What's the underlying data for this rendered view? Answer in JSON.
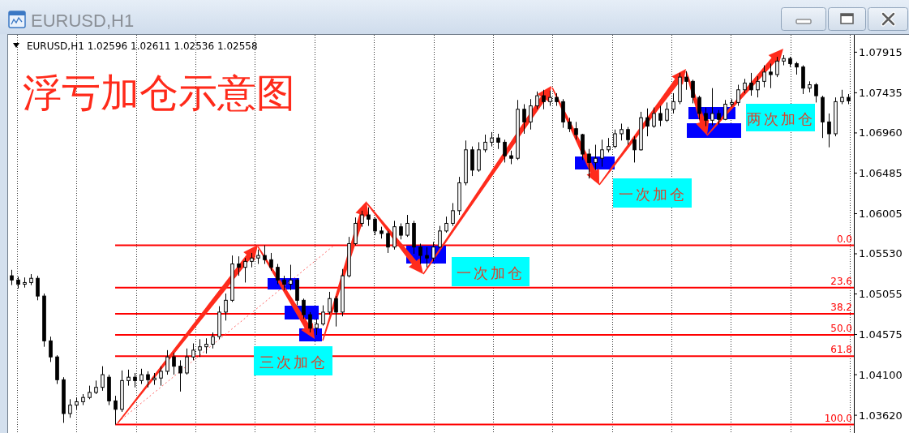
{
  "chart_data": {
    "type": "candlestick",
    "title": "浮亏加仓示意图",
    "subtitle": "EURUSD,H1 1.02596 1.02611 1.02536 1.02558",
    "annotations": [
      "EURUSD,H1",
      "三次加仓",
      "一次加仓",
      "一次加仓",
      "两次加仓",
      {
        "text": "0.0",
        "y": 1.0563
      },
      {
        "text": "23.6",
        "y": 1.0513
      },
      {
        "text": "38.2",
        "y": 1.0482
      },
      {
        "text": "50.0",
        "y": 1.0457
      },
      {
        "text": "61.8",
        "y": 1.0432
      },
      {
        "text": "100.0",
        "y": 1.0351
      }
    ],
    "tick_labels": "y",
    "categories": [
      null,
      null,
      null,
      null,
      null,
      null,
      null,
      null,
      null,
      null,
      null,
      null,
      null,
      null,
      null,
      null,
      null,
      null,
      null,
      null,
      null,
      null,
      null,
      null,
      null,
      null,
      null,
      null,
      null,
      null,
      null,
      null,
      null,
      null,
      null,
      null,
      null,
      null,
      null,
      null,
      null,
      null,
      null,
      null,
      null,
      null,
      null,
      null,
      null,
      null,
      null,
      null,
      null,
      null,
      null,
      null,
      null,
      null,
      null,
      null,
      null,
      null,
      null,
      null,
      null,
      null,
      null,
      null,
      null,
      null,
      null,
      null,
      null,
      null,
      null,
      null,
      null,
      null,
      null,
      null,
      null,
      null,
      null,
      null,
      null,
      null,
      null,
      null,
      null,
      null,
      null,
      null,
      null,
      null,
      null,
      null,
      null,
      null,
      null,
      null,
      null,
      null,
      null,
      null,
      null,
      null,
      null,
      null,
      null,
      null,
      null,
      null,
      null,
      null,
      null,
      null,
      null,
      null,
      null,
      null,
      null,
      null,
      null,
      null,
      null,
      null,
      null,
      null,
      null,
      null
    ],
    "ohlc": [
      [
        1.0527,
        1.0534,
        1.0516,
        1.0522
      ],
      [
        1.0522,
        1.0526,
        1.0512,
        1.0517
      ],
      [
        1.0517,
        1.0525,
        1.0513,
        1.0519
      ],
      [
        1.0519,
        1.0529,
        1.0516,
        1.0524
      ],
      [
        1.0524,
        1.0527,
        1.0498,
        1.0503
      ],
      [
        1.0503,
        1.0506,
        1.0443,
        1.045
      ],
      [
        1.045,
        1.0455,
        1.0425,
        1.0431
      ],
      [
        1.0431,
        1.0433,
        1.0399,
        1.0404
      ],
      [
        1.0404,
        1.0407,
        1.0353,
        1.0364
      ],
      [
        1.0364,
        1.0381,
        1.0359,
        1.0374
      ],
      [
        1.0374,
        1.0383,
        1.0369,
        1.0378
      ],
      [
        1.0378,
        1.0387,
        1.0374,
        1.0383
      ],
      [
        1.0383,
        1.0397,
        1.0381,
        1.0389
      ],
      [
        1.0389,
        1.0403,
        1.0387,
        1.0395
      ],
      [
        1.0395,
        1.042,
        1.0391,
        1.041
      ],
      [
        1.0407,
        1.041,
        1.0374,
        1.0379
      ],
      [
        1.0379,
        1.0385,
        1.0351,
        1.0369
      ],
      [
        1.0369,
        1.0415,
        1.0366,
        1.0403
      ],
      [
        1.0403,
        1.0416,
        1.0397,
        1.0407
      ],
      [
        1.0407,
        1.0412,
        1.0395,
        1.0403
      ],
      [
        1.0403,
        1.0417,
        1.0399,
        1.041
      ],
      [
        1.041,
        1.0414,
        1.0395,
        1.0404
      ],
      [
        1.0404,
        1.0412,
        1.0398,
        1.0406
      ],
      [
        1.0406,
        1.042,
        1.0397,
        1.0414
      ],
      [
        1.0414,
        1.0439,
        1.041,
        1.0431
      ],
      [
        1.0431,
        1.0436,
        1.041,
        1.042
      ],
      [
        1.042,
        1.0427,
        1.039,
        1.0412
      ],
      [
        1.0412,
        1.0441,
        1.041,
        1.0431
      ],
      [
        1.0431,
        1.0447,
        1.0427,
        1.0439
      ],
      [
        1.0439,
        1.0452,
        1.0431,
        1.0443
      ],
      [
        1.0443,
        1.0453,
        1.0435,
        1.0446
      ],
      [
        1.0446,
        1.046,
        1.0441,
        1.0455
      ],
      [
        1.0455,
        1.0491,
        1.0452,
        1.0484
      ],
      [
        1.0484,
        1.0506,
        1.0474,
        1.0498
      ],
      [
        1.0498,
        1.0551,
        1.0496,
        1.0541
      ],
      [
        1.0541,
        1.055,
        1.0527,
        1.0537
      ],
      [
        1.0537,
        1.0548,
        1.0519,
        1.0544
      ],
      [
        1.0544,
        1.0554,
        1.0537,
        1.0548
      ],
      [
        1.0548,
        1.0558,
        1.0541,
        1.0551
      ],
      [
        1.0551,
        1.0563,
        1.0541,
        1.0546
      ],
      [
        1.0546,
        1.0554,
        1.0533,
        1.0537
      ],
      [
        1.0537,
        1.0541,
        1.0517,
        1.0522
      ],
      [
        1.0522,
        1.0527,
        1.051,
        1.0517
      ],
      [
        1.0517,
        1.054,
        1.051,
        1.0522
      ],
      [
        1.0522,
        1.0524,
        1.0492,
        1.0498
      ],
      [
        1.0498,
        1.05,
        1.0476,
        1.0481
      ],
      [
        1.0481,
        1.0484,
        1.046,
        1.0465
      ],
      [
        1.0465,
        1.0476,
        1.0457,
        1.047
      ],
      [
        1.047,
        1.0492,
        1.0468,
        1.0484
      ],
      [
        1.0484,
        1.0508,
        1.0481,
        1.05
      ],
      [
        1.05,
        1.0503,
        1.0467,
        1.0484
      ],
      [
        1.0484,
        1.0535,
        1.0479,
        1.0527
      ],
      [
        1.0527,
        1.0573,
        1.0525,
        1.0565
      ],
      [
        1.0565,
        1.0596,
        1.0563,
        1.0589
      ],
      [
        1.0589,
        1.0604,
        1.0585,
        1.0599
      ],
      [
        1.0599,
        1.0608,
        1.0586,
        1.0594
      ],
      [
        1.0594,
        1.0596,
        1.0575,
        1.058
      ],
      [
        1.058,
        1.0585,
        1.0571,
        1.0577
      ],
      [
        1.0577,
        1.058,
        1.0554,
        1.0561
      ],
      [
        1.0561,
        1.0592,
        1.0558,
        1.0585
      ],
      [
        1.0585,
        1.0589,
        1.057,
        1.0575
      ],
      [
        1.0575,
        1.0599,
        1.0573,
        1.0589
      ],
      [
        1.0589,
        1.0592,
        1.0553,
        1.0561
      ],
      [
        1.0561,
        1.0565,
        1.0541,
        1.0551
      ],
      [
        1.0551,
        1.0561,
        1.0537,
        1.0548
      ],
      [
        1.0548,
        1.0567,
        1.0544,
        1.0561
      ],
      [
        1.0561,
        1.0586,
        1.056,
        1.058
      ],
      [
        1.058,
        1.0597,
        1.0578,
        1.0589
      ],
      [
        1.0589,
        1.0613,
        1.0586,
        1.0604
      ],
      [
        1.0604,
        1.0644,
        1.0599,
        1.0637
      ],
      [
        1.0637,
        1.0687,
        1.0634,
        1.0676
      ],
      [
        1.0676,
        1.068,
        1.0645,
        1.0652
      ],
      [
        1.0652,
        1.0685,
        1.065,
        1.0676
      ],
      [
        1.0676,
        1.0694,
        1.0673,
        1.0685
      ],
      [
        1.0685,
        1.0697,
        1.068,
        1.069
      ],
      [
        1.069,
        1.0695,
        1.0677,
        1.0685
      ],
      [
        1.0685,
        1.0688,
        1.0661,
        1.0669
      ],
      [
        1.0669,
        1.0675,
        1.0659,
        1.0666
      ],
      [
        1.0666,
        1.0735,
        1.0664,
        1.0724
      ],
      [
        1.0724,
        1.073,
        1.0695,
        1.0709
      ],
      [
        1.0709,
        1.0736,
        1.07,
        1.0728
      ],
      [
        1.0728,
        1.0745,
        1.0724,
        1.074
      ],
      [
        1.074,
        1.0747,
        1.0724,
        1.0733
      ],
      [
        1.0733,
        1.0746,
        1.0728,
        1.0738
      ],
      [
        1.0738,
        1.0743,
        1.0728,
        1.0733
      ],
      [
        1.0733,
        1.0736,
        1.0702,
        1.0709
      ],
      [
        1.0709,
        1.0714,
        1.0697,
        1.0701
      ],
      [
        1.0701,
        1.0709,
        1.0688,
        1.0694
      ],
      [
        1.0694,
        1.0695,
        1.0664,
        1.0671
      ],
      [
        1.0671,
        1.0677,
        1.0642,
        1.0661
      ],
      [
        1.0661,
        1.0682,
        1.0652,
        1.0666
      ],
      [
        1.0666,
        1.0688,
        1.0656,
        1.0676
      ],
      [
        1.0676,
        1.069,
        1.0673,
        1.068
      ],
      [
        1.068,
        1.07,
        1.0678,
        1.0695
      ],
      [
        1.0695,
        1.0707,
        1.0687,
        1.07
      ],
      [
        1.07,
        1.0703,
        1.0682,
        1.0688
      ],
      [
        1.0688,
        1.0692,
        1.0661,
        1.0676
      ],
      [
        1.0676,
        1.0721,
        1.0675,
        1.0714
      ],
      [
        1.0714,
        1.0725,
        1.0692,
        1.0704
      ],
      [
        1.0704,
        1.0726,
        1.0702,
        1.0719
      ],
      [
        1.0719,
        1.0728,
        1.0704,
        1.0711
      ],
      [
        1.0711,
        1.0732,
        1.0709,
        1.0724
      ],
      [
        1.0724,
        1.0743,
        1.0719,
        1.0733
      ],
      [
        1.0733,
        1.0767,
        1.073,
        1.0762
      ],
      [
        1.0762,
        1.0769,
        1.0747,
        1.0757
      ],
      [
        1.0757,
        1.0759,
        1.0731,
        1.0738
      ],
      [
        1.0738,
        1.074,
        1.0712,
        1.0719
      ],
      [
        1.0719,
        1.0726,
        1.0704,
        1.0711
      ],
      [
        1.0711,
        1.0749,
        1.0705,
        1.0719
      ],
      [
        1.0719,
        1.0723,
        1.0706,
        1.0712
      ],
      [
        1.0712,
        1.0735,
        1.0711,
        1.073
      ],
      [
        1.073,
        1.0736,
        1.0727,
        1.0732
      ],
      [
        1.0732,
        1.0753,
        1.0728,
        1.0747
      ],
      [
        1.0747,
        1.076,
        1.0743,
        1.0755
      ],
      [
        1.0755,
        1.0767,
        1.074,
        1.0747
      ],
      [
        1.0747,
        1.0763,
        1.0738,
        1.0757
      ],
      [
        1.0757,
        1.0776,
        1.075,
        1.0768
      ],
      [
        1.0768,
        1.0778,
        1.0749,
        1.0765
      ],
      [
        1.0765,
        1.0786,
        1.0762,
        1.0781
      ],
      [
        1.0781,
        1.0788,
        1.0776,
        1.0784
      ],
      [
        1.0784,
        1.0786,
        1.0774,
        1.0778
      ],
      [
        1.0778,
        1.078,
        1.0765,
        1.0774
      ],
      [
        1.0774,
        1.0776,
        1.0742,
        1.0749
      ],
      [
        1.0749,
        1.0757,
        1.0744,
        1.0753
      ],
      [
        1.0753,
        1.0755,
        1.0732,
        1.074
      ],
      [
        1.0738,
        1.074,
        1.069,
        1.0709
      ],
      [
        1.0709,
        1.0719,
        1.0679,
        1.0695
      ],
      [
        1.0695,
        1.0738,
        1.0692,
        1.0733
      ],
      [
        1.0733,
        1.0747,
        1.073,
        1.0738
      ],
      [
        1.0738,
        1.0742,
        1.073,
        1.0734
      ]
    ],
    "ylim": [
      1.0341,
      1.0812
    ],
    "yticks": [
      {
        "value": 1.0362,
        "label": "1.03620"
      },
      {
        "value": 1.041,
        "label": "1.04100"
      },
      1.04575,
      1.05055,
      {
        "value": 1.0553,
        "label": "1.05530"
      },
      1.06005,
      1.06485,
      {
        "value": 1.0696,
        "label": "1.06960"
      },
      1.07435,
      1.07915
    ],
    "ref_lines": [
      {
        "axis": "y",
        "value": 1.0563,
        "color": "#ff0000"
      },
      {
        "axis": "y",
        "value": 1.0513,
        "color": "#ff0000"
      },
      {
        "axis": "y",
        "value": 1.0482,
        "color": "#ff0000"
      },
      {
        "axis": "y",
        "value": 1.0457,
        "color": "#ff0000"
      },
      {
        "axis": "y",
        "value": 1.0432,
        "color": "#ff0000"
      },
      {
        "axis": "y",
        "value": 1.0351,
        "color": "#ff0000"
      }
    ]
  }
}
